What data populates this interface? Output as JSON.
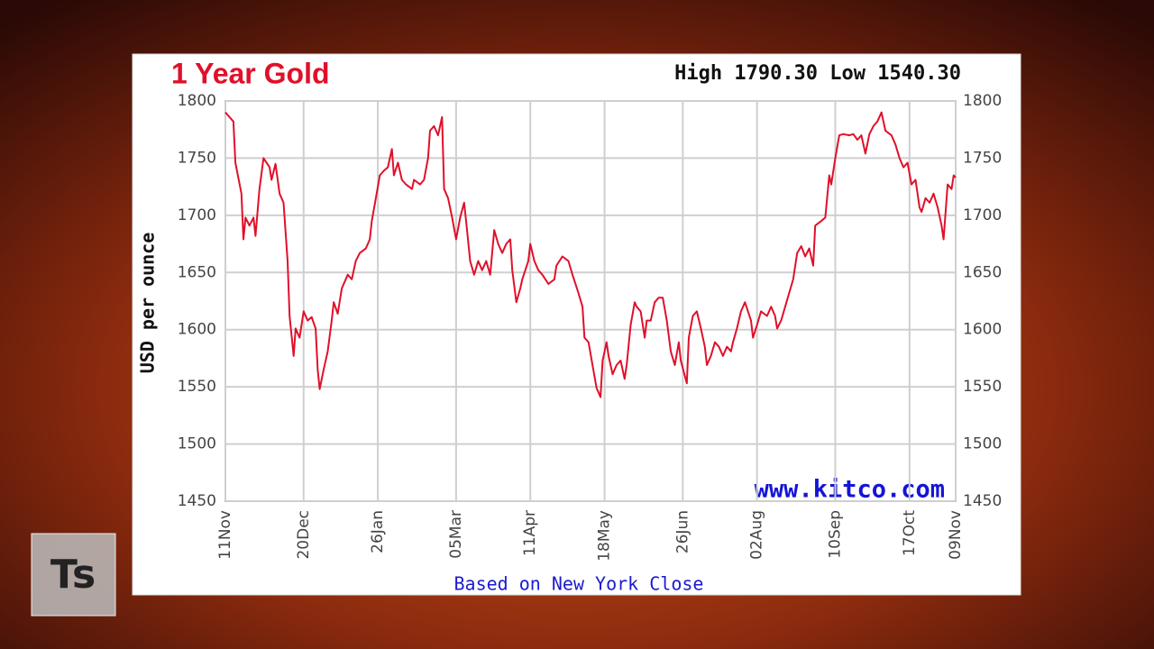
{
  "chart_data": {
    "type": "line",
    "title": "1 Year Gold",
    "subtitle": "High 1790.30 Low 1540.30",
    "y_label": "USD per ounce",
    "x_label": "Based on New York Close",
    "annotation": "www.kitco.com",
    "logo": "Ts",
    "color": "#e0102a",
    "grid": true,
    "xlim": [
      0,
      364
    ],
    "xticks": [
      {
        "value": 0,
        "label": "11Nov"
      },
      {
        "value": 39,
        "label": "20Dec"
      },
      {
        "value": 76,
        "label": "26Jan"
      },
      {
        "value": 115,
        "label": "05Mar"
      },
      {
        "value": 152,
        "label": "11Apr"
      },
      {
        "value": 189,
        "label": "18May"
      },
      {
        "value": 228,
        "label": "26Jun"
      },
      {
        "value": 265,
        "label": "02Aug"
      },
      {
        "value": 304,
        "label": "10Sep"
      },
      {
        "value": 341,
        "label": "17Oct"
      },
      {
        "value": 364,
        "label": "09Nov"
      }
    ],
    "ylim": [
      1450,
      1800
    ],
    "yticks": [
      1450,
      1500,
      1550,
      1600,
      1650,
      1700,
      1750,
      1800
    ],
    "y2lim": [
      1450,
      1800
    ],
    "y2ticks": [
      1450,
      1500,
      1550,
      1600,
      1650,
      1700,
      1750,
      1800
    ],
    "x": [
      0,
      4,
      5,
      8,
      9,
      10,
      12,
      14,
      15,
      17,
      19,
      22,
      23,
      25,
      27,
      29,
      31,
      32,
      34,
      35,
      37,
      39,
      41,
      43,
      45,
      46,
      47,
      49,
      51,
      53,
      54,
      56,
      58,
      61,
      63,
      65,
      67,
      70,
      72,
      73,
      75,
      77,
      79,
      81,
      83,
      84,
      86,
      88,
      90,
      93,
      94,
      97,
      99,
      101,
      102,
      104,
      106,
      108,
      109,
      111,
      113,
      115,
      117,
      119,
      120,
      122,
      124,
      126,
      128,
      130,
      132,
      134,
      136,
      138,
      140,
      142,
      143,
      145,
      147,
      148,
      151,
      152,
      154,
      156,
      158,
      161,
      164,
      165,
      168,
      171,
      173,
      176,
      178,
      179,
      181,
      183,
      185,
      187,
      188,
      190,
      191,
      193,
      195,
      197,
      199,
      200,
      202,
      204,
      205,
      207,
      209,
      210,
      212,
      214,
      216,
      218,
      220,
      222,
      224,
      226,
      227,
      230,
      231,
      233,
      235,
      237,
      239,
      240,
      242,
      244,
      246,
      248,
      250,
      252,
      253,
      255,
      257,
      259,
      262,
      263,
      265,
      267,
      270,
      272,
      274,
      275,
      277,
      279,
      281,
      283,
      285,
      287,
      289,
      291,
      293,
      294,
      297,
      299,
      301,
      302,
      304,
      306,
      308,
      311,
      313,
      315,
      317,
      319,
      321,
      323,
      325,
      327,
      329,
      332,
      334,
      336,
      338,
      340,
      342,
      344,
      346,
      347,
      349,
      351,
      353,
      355,
      357,
      358,
      360,
      362,
      363,
      364
    ],
    "values": [
      1790,
      1782,
      1746,
      1719,
      1679,
      1698,
      1691,
      1698,
      1682,
      1723,
      1750,
      1742,
      1731,
      1745,
      1719,
      1711,
      1660,
      1612,
      1577,
      1601,
      1593,
      1616,
      1608,
      1611,
      1601,
      1565,
      1548,
      1565,
      1581,
      1608,
      1624,
      1614,
      1636,
      1648,
      1644,
      1660,
      1667,
      1671,
      1679,
      1695,
      1715,
      1735,
      1739,
      1742,
      1758,
      1735,
      1746,
      1731,
      1727,
      1723,
      1731,
      1727,
      1731,
      1750,
      1774,
      1778,
      1770,
      1786,
      1723,
      1715,
      1698,
      1679,
      1698,
      1711,
      1695,
      1660,
      1648,
      1660,
      1652,
      1660,
      1648,
      1687,
      1675,
      1667,
      1675,
      1679,
      1652,
      1624,
      1636,
      1644,
      1660,
      1675,
      1660,
      1652,
      1648,
      1640,
      1644,
      1656,
      1664,
      1660,
      1648,
      1632,
      1620,
      1593,
      1589,
      1569,
      1549,
      1541,
      1573,
      1589,
      1577,
      1561,
      1569,
      1573,
      1557,
      1569,
      1604,
      1624,
      1620,
      1616,
      1593,
      1608,
      1608,
      1624,
      1628,
      1628,
      1608,
      1581,
      1569,
      1589,
      1573,
      1553,
      1593,
      1612,
      1616,
      1601,
      1585,
      1569,
      1577,
      1589,
      1585,
      1577,
      1585,
      1581,
      1589,
      1601,
      1616,
      1624,
      1608,
      1593,
      1604,
      1616,
      1612,
      1620,
      1612,
      1601,
      1608,
      1620,
      1632,
      1644,
      1667,
      1673,
      1664,
      1671,
      1656,
      1691,
      1695,
      1698,
      1735,
      1727,
      1750,
      1770,
      1771,
      1770,
      1771,
      1766,
      1770,
      1754,
      1771,
      1778,
      1782,
      1790,
      1774,
      1770,
      1762,
      1750,
      1742,
      1746,
      1727,
      1731,
      1707,
      1703,
      1715,
      1711,
      1719,
      1707,
      1691,
      1679,
      1727,
      1723,
      1735,
      1733
    ]
  }
}
